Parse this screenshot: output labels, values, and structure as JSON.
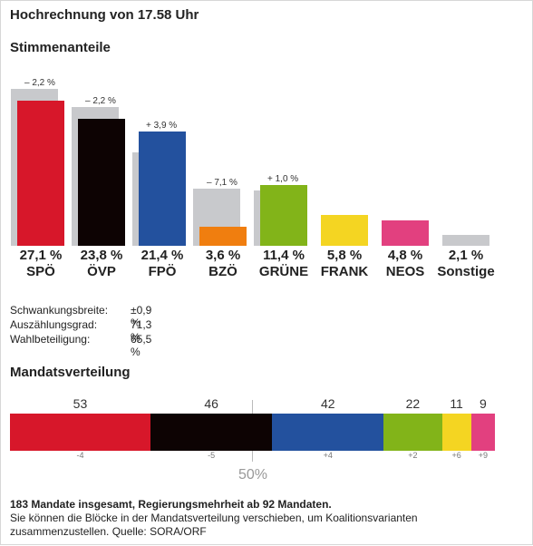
{
  "header": {
    "title": "Hochrechnung von 17.58 Uhr"
  },
  "votes_title": "Stimmenanteile",
  "mandates_title": "Mandatsverteilung",
  "colors": {
    "SPÖ": "#d7172a",
    "ÖVP": "#0d0303",
    "FPÖ": "#23519e",
    "BZÖ": "#f07e0f",
    "GRÜNE": "#82b419",
    "FRANK": "#f4d522",
    "NEOS": "#e2407f",
    "Sonstige": "#c8c9cc",
    "previous": "#c8c9cc"
  },
  "chart_data": [
    {
      "type": "bar",
      "title": "Stimmenanteile",
      "categories": [
        "SPÖ",
        "ÖVP",
        "FPÖ",
        "BZÖ",
        "GRÜNE",
        "FRANK",
        "NEOS",
        "Sonstige"
      ],
      "series": [
        {
          "values": [
            27.1,
            23.8,
            21.4,
            3.6,
            11.4,
            5.8,
            4.8,
            2.1
          ]
        },
        {
          "values": [
            29.3,
            26.0,
            17.5,
            10.7,
            10.4,
            null,
            null,
            null
          ]
        }
      ],
      "value_labels": [
        "27,1 %",
        "23,8 %",
        "21,4 %",
        "3,6 %",
        "11,4 %",
        "5,8 %",
        "4,8 %",
        "2,1 %"
      ],
      "change_labels": [
        "– 2,2 %",
        "– 2,2 %",
        "+ 3,9 %",
        "– 7,1 %",
        "+ 1,0 %",
        "",
        "",
        ""
      ],
      "ylim": [
        0,
        30
      ],
      "grid": false
    },
    {
      "type": "bar",
      "title": "Mandatsverteilung",
      "categories": [
        "SPÖ",
        "ÖVP",
        "FPÖ",
        "GRÜNE",
        "FRANK",
        "NEOS"
      ],
      "values": [
        53,
        46,
        42,
        22,
        11,
        9
      ],
      "changes": [
        "-4",
        "-5",
        "+4",
        "+2",
        "+6",
        "+9"
      ],
      "total": 183,
      "center_label": "50%"
    }
  ],
  "stats": [
    {
      "label": "Schwankungsbreite:",
      "value": "±0,9 %"
    },
    {
      "label": "Auszählungsgrad:",
      "value": "71,3 %"
    },
    {
      "label": "Wahlbeteiligung:",
      "value": "65,5 %"
    }
  ],
  "footer": {
    "line1": "183 Mandate insgesamt, Regierungsmehrheit ab 92 Mandaten.",
    "line2": "Sie können die Blöcke in der Mandatsverteilung verschieben, um Koalitionsvarianten zusammenzustellen. Quelle: SORA/ORF"
  }
}
